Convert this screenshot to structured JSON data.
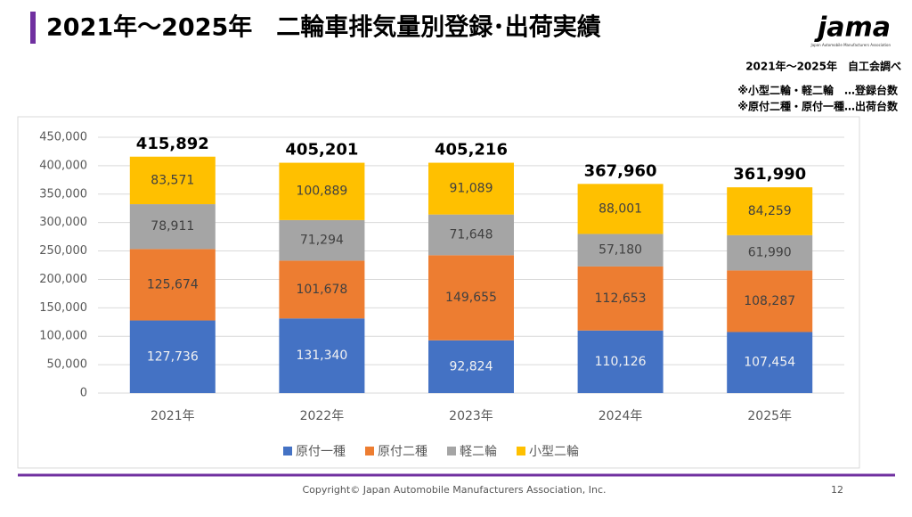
{
  "chart_data": {
    "type": "stacked_bar",
    "title": "2021年～2025年　二輪車排気量別登録･出荷実績",
    "subtitle": [
      "2021年～2025年　自工会調べ",
      "※小型二輪・軽二輪　…登録台数",
      "※原付二種・原付一種…出荷台数"
    ],
    "logo": "jama",
    "logo_caption": "Japan Automobile Manufacturers Association",
    "footer": "Copyright© Japan Automobile Manufacturers Association, Inc.",
    "page_number": "12",
    "categories": [
      "2021年",
      "2022年",
      "2023年",
      "2024年",
      "2025年"
    ],
    "series": [
      {
        "name": "原付一種",
        "color": "#4472c4",
        "values": [
          127736,
          131340,
          92824,
          110126,
          107454
        ],
        "value_labels": [
          "127,736",
          "131,340",
          "92,824",
          "110,126",
          "107,454"
        ]
      },
      {
        "name": "原付二種",
        "color": "#ed7d31",
        "values": [
          125674,
          101678,
          149655,
          112653,
          108287
        ],
        "value_labels": [
          "125,674",
          "101,678",
          "149,655",
          "112,653",
          "108,287"
        ]
      },
      {
        "name": "軽二輪",
        "color": "#a5a5a5",
        "values": [
          78911,
          71294,
          71648,
          57180,
          61990
        ],
        "value_labels": [
          "78,911",
          "71,294",
          "71,648",
          "57,180",
          "61,990"
        ]
      },
      {
        "name": "小型二輪",
        "color": "#ffc000",
        "values": [
          83571,
          100889,
          91089,
          88001,
          84259
        ],
        "value_labels": [
          "83,571",
          "100,889",
          "91,089",
          "88,001",
          "84,259"
        ]
      }
    ],
    "totals": {
      "values": [
        415892,
        405201,
        405216,
        367960,
        361990
      ],
      "value_labels": [
        "415,892",
        "405,201",
        "405,216",
        "367,960",
        "361,990"
      ]
    },
    "ylim": [
      0,
      450000
    ],
    "yticks": [
      0,
      {
        "value": 50000,
        "label": "50,000"
      },
      {
        "value": 100000,
        "label": "100,000"
      },
      {
        "value": 150000,
        "label": "150,000"
      },
      {
        "value": 200000,
        "label": "200,000"
      },
      {
        "value": 250000,
        "label": "250,000"
      },
      {
        "value": 300000,
        "label": "300,000"
      },
      {
        "value": 350000,
        "label": "350,000"
      },
      {
        "value": 400000,
        "label": "400,000"
      },
      {
        "value": 450000,
        "label": "450,000"
      }
    ],
    "grid": true,
    "legend": "bottom"
  }
}
